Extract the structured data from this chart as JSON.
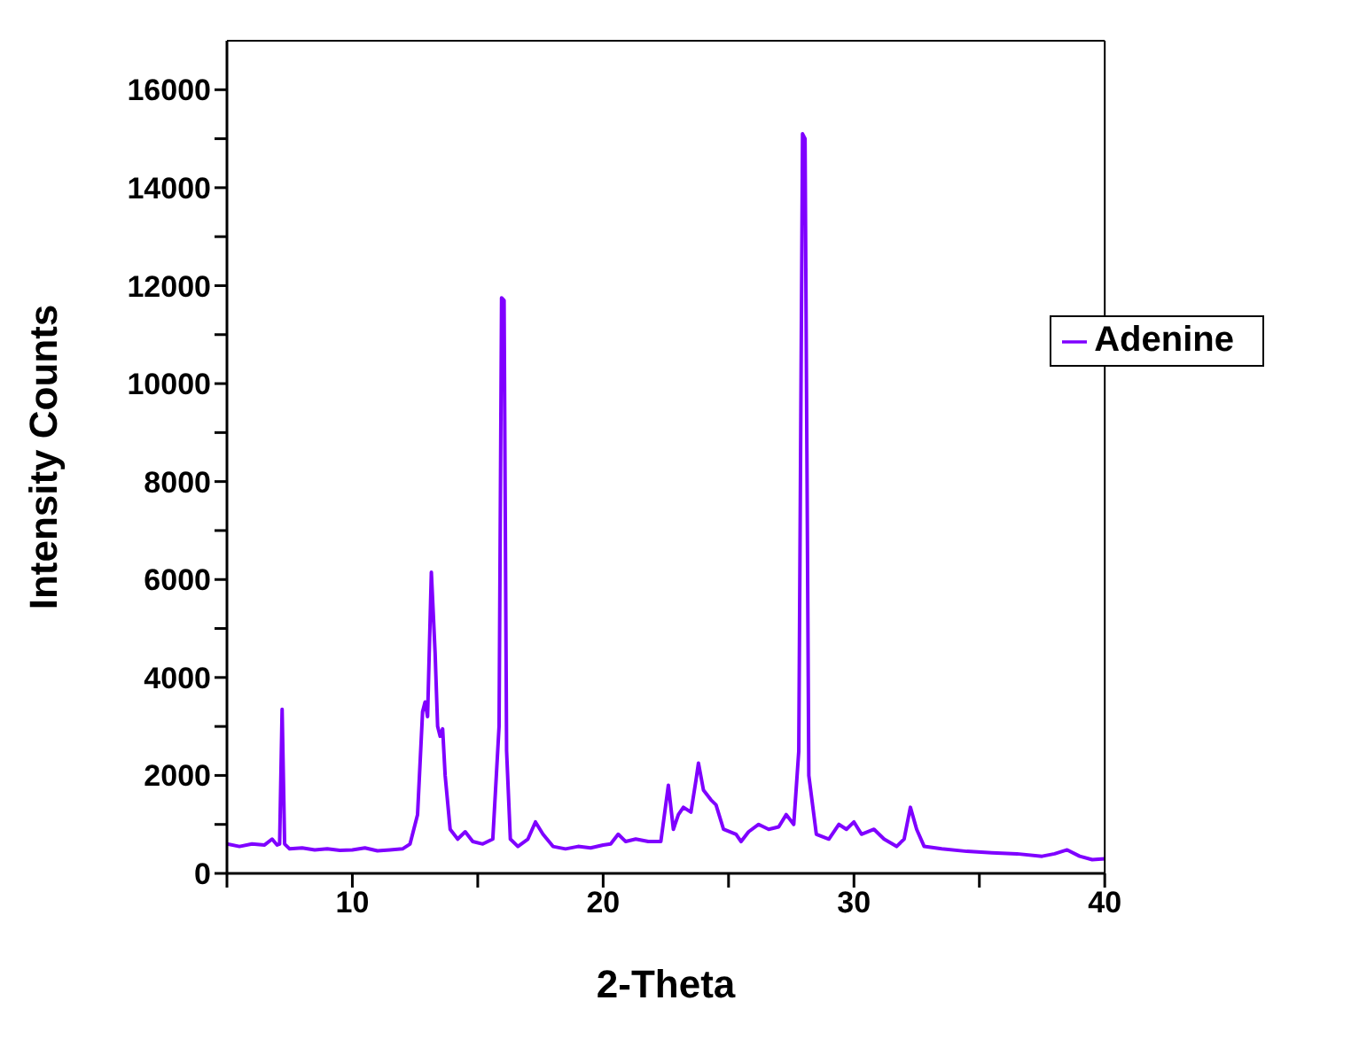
{
  "chart_data": {
    "type": "line",
    "xlabel": "2-Theta",
    "ylabel": "Intensity Counts",
    "xlim": [
      5,
      40
    ],
    "ylim": [
      0,
      17000
    ],
    "xticks": [
      {
        "value": 5,
        "label": null
      },
      10,
      {
        "value": 15,
        "label": null
      },
      20,
      {
        "value": 25,
        "label": null
      },
      30,
      {
        "value": 35,
        "label": null
      },
      40
    ],
    "yticks": [
      0,
      {
        "value": 1000,
        "label": null
      },
      2000,
      {
        "value": 3000,
        "label": null
      },
      4000,
      {
        "value": 5000,
        "label": null
      },
      6000,
      {
        "value": 7000,
        "label": null
      },
      8000,
      {
        "value": 9000,
        "label": null
      },
      10000,
      {
        "value": 11000,
        "label": null
      },
      12000,
      {
        "value": 13000,
        "label": null
      },
      14000,
      {
        "value": 15000,
        "label": null
      },
      16000
    ],
    "legend": "top right",
    "marker": "none",
    "line_style": "solid",
    "series": [
      {
        "name": "Adenine",
        "color": "#7f00ff",
        "x": [
          5,
          5.5,
          6,
          6.5,
          6.8,
          7.0,
          7.1,
          7.2,
          7.3,
          7.5,
          8,
          8.5,
          9,
          9.5,
          10,
          10.5,
          11,
          11.5,
          12,
          12.3,
          12.6,
          12.8,
          12.9,
          13.0,
          13.15,
          13.3,
          13.4,
          13.5,
          13.6,
          13.7,
          13.9,
          14.2,
          14.5,
          14.8,
          15.2,
          15.6,
          15.85,
          15.95,
          16.05,
          16.15,
          16.3,
          16.6,
          17.0,
          17.3,
          17.6,
          18,
          18.5,
          19,
          19.5,
          20,
          20.3,
          20.6,
          20.9,
          21.3,
          21.8,
          22.3,
          22.6,
          22.8,
          23.0,
          23.2,
          23.5,
          23.7,
          23.8,
          24.0,
          24.3,
          24.5,
          24.8,
          25.3,
          25.5,
          25.8,
          26.2,
          26.6,
          27.0,
          27.3,
          27.6,
          27.8,
          27.95,
          28.05,
          28.2,
          28.5,
          29,
          29.4,
          29.7,
          30.0,
          30.3,
          30.8,
          31.2,
          31.7,
          32.0,
          32.25,
          32.5,
          32.8,
          33.5,
          34.5,
          35.5,
          36.5,
          37.5,
          38,
          38.5,
          39,
          39.5,
          40
        ],
        "values": [
          600,
          550,
          600,
          580,
          700,
          580,
          600,
          3350,
          600,
          500,
          520,
          480,
          500,
          470,
          480,
          520,
          460,
          480,
          500,
          600,
          1200,
          3300,
          3500,
          3200,
          6150,
          4500,
          3000,
          2800,
          2950,
          2000,
          900,
          700,
          850,
          650,
          600,
          700,
          3000,
          11750,
          11700,
          2500,
          700,
          550,
          700,
          1050,
          800,
          550,
          500,
          550,
          520,
          580,
          600,
          800,
          650,
          700,
          650,
          650,
          1800,
          900,
          1200,
          1350,
          1250,
          1900,
          2250,
          1700,
          1500,
          1400,
          900,
          800,
          650,
          850,
          1000,
          900,
          950,
          1200,
          1000,
          2500,
          15100,
          15000,
          2000,
          800,
          700,
          1000,
          900,
          1050,
          800,
          900,
          700,
          550,
          700,
          1350,
          900,
          550,
          500,
          450,
          420,
          400,
          350,
          400,
          480,
          350,
          280,
          300
        ]
      }
    ]
  }
}
